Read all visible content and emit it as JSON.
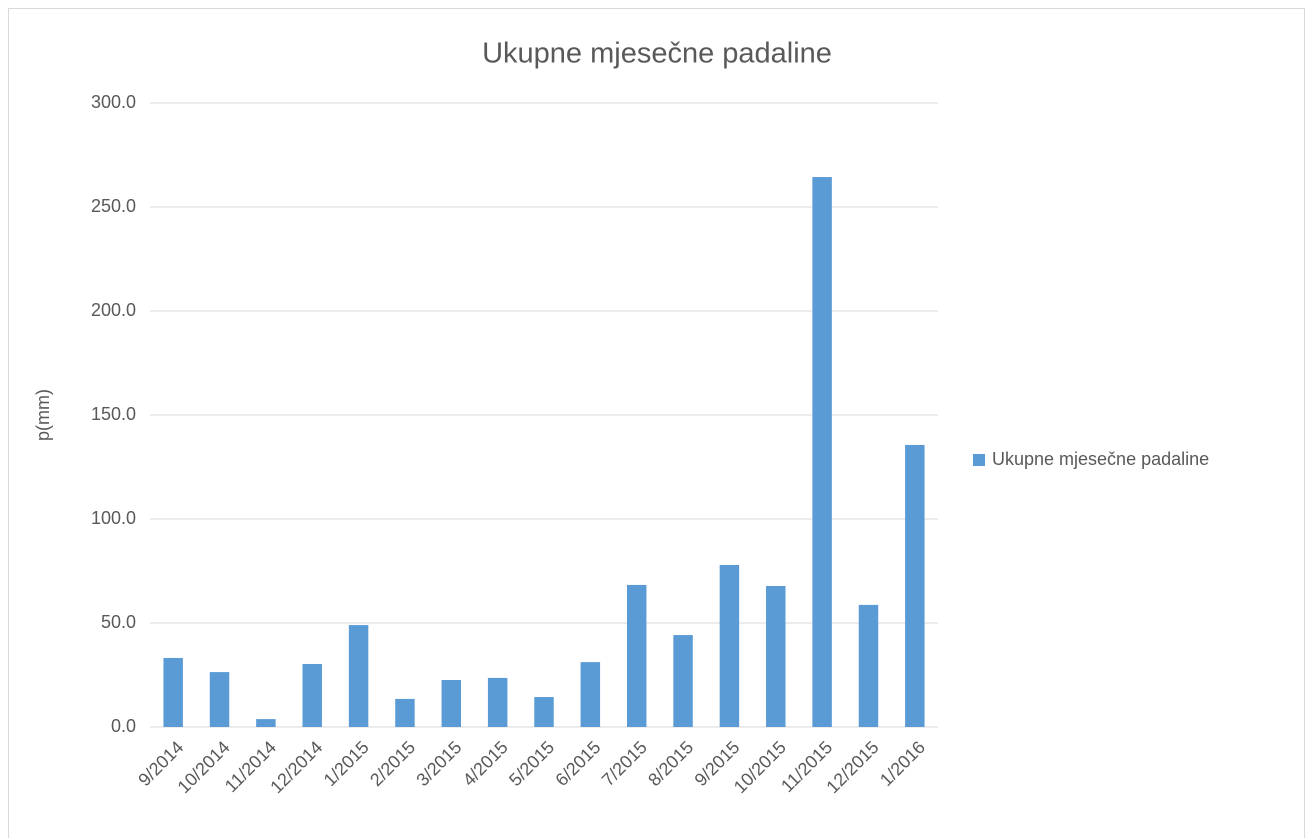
{
  "chart_data": {
    "type": "bar",
    "title": "Ukupne mjesečne padaline",
    "y_label": "p(mm)",
    "categories": [
      "9/2014",
      "10/2014",
      "11/2014",
      "12/2014",
      "1/2015",
      "2/2015",
      "3/2015",
      "4/2015",
      "5/2015",
      "6/2015",
      "7/2015",
      "8/2015",
      "9/2015",
      "10/2015",
      "11/2015",
      "12/2015",
      "1/2016"
    ],
    "series": [
      {
        "name": "Ukupne mjesečne padaline",
        "color": "#5b9bd5",
        "values": [
          33.2,
          26.4,
          3.8,
          30.3,
          49.0,
          13.5,
          22.6,
          23.6,
          14.4,
          31.2,
          68.3,
          44.2,
          77.9,
          67.8,
          264.4,
          58.7,
          135.6
        ]
      }
    ],
    "ylim": [
      0,
      300
    ],
    "yticks": [
      {
        "value": 0,
        "label": "0.0"
      },
      {
        "value": 50,
        "label": "50.0"
      },
      {
        "value": 100,
        "label": "100.0"
      },
      {
        "value": 150,
        "label": "150.0"
      },
      {
        "value": 200,
        "label": "200.0"
      },
      {
        "value": 250,
        "label": "250.0"
      },
      {
        "value": 300,
        "label": "300.0"
      }
    ],
    "grid": true,
    "legend": "right"
  }
}
